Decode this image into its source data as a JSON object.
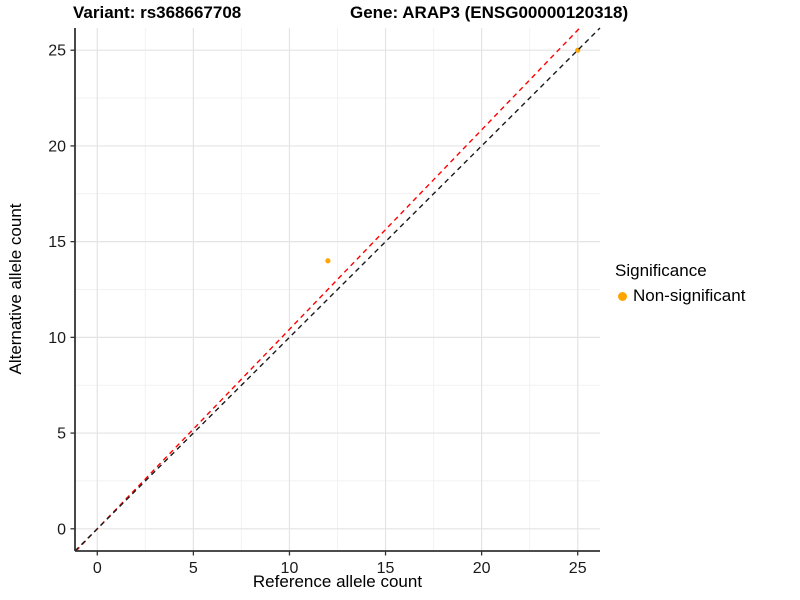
{
  "chart_data": {
    "type": "scatter",
    "titles": {
      "variant": "Variant: rs368667708",
      "gene": "Gene: ARAP3 (ENSG00000120318)"
    },
    "xlabel": "Reference allele count",
    "ylabel": "Alternative allele count",
    "xlim": [
      -1.16,
      26.16
    ],
    "ylim": [
      -1.16,
      26.16
    ],
    "x_ticks": [
      0,
      5,
      10,
      15,
      20,
      25
    ],
    "y_ticks": [
      0,
      5,
      10,
      15,
      20,
      25
    ],
    "x_minor_ticks": [
      2.5,
      7.5,
      12.5,
      17.5,
      22.5
    ],
    "y_minor_ticks": [
      2.5,
      7.5,
      12.5,
      17.5,
      22.5
    ],
    "grid": true,
    "legend": {
      "title": "Significance",
      "position": "right",
      "items": [
        {
          "label": "Non-significant",
          "color": "#FFA500"
        }
      ]
    },
    "series": [
      {
        "name": "Non-significant",
        "color": "#FFA500",
        "point_radius": 2.6,
        "points": [
          [
            12,
            14
          ],
          [
            25,
            25
          ]
        ]
      }
    ],
    "reference_lines": [
      {
        "name": "expected-ratio-line",
        "slope": 1.042,
        "intercept": 0,
        "color": "#FF0000",
        "linetype": "dashed"
      },
      {
        "name": "identity-line",
        "slope": 1.0,
        "intercept": 0,
        "color": "#1A1A1A",
        "linetype": "dashed"
      }
    ],
    "colors": {
      "grid_major": "#E4E4E4",
      "grid_minor": "#F2F2F2",
      "axis_line": "#333333",
      "tick_mark": "#333333",
      "tick_label": "#1A1A1A"
    }
  }
}
